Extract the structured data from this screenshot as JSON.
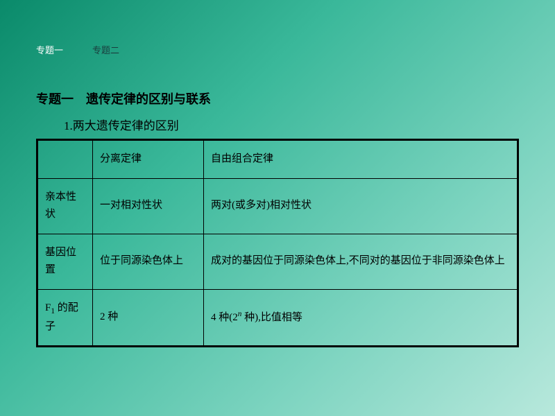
{
  "tabs": {
    "t1": "专题一",
    "t2": "专题二"
  },
  "heading": {
    "main": "专题一　遗传定律的区别与联系",
    "sub": "1.两大遗传定律的区别"
  },
  "table": {
    "columns": [
      "",
      "分离定律",
      "自由组合定律"
    ],
    "rows": [
      {
        "label": "亲本性状",
        "c1": "一对相对性状",
        "c2": "两对(或多对)相对性状"
      },
      {
        "label": "基因位置",
        "c1": "位于同源染色体上",
        "c2": "成对的基因位于同源染色体上,不同对的基因位于非同源染色体上"
      },
      {
        "label_html": "F<sub>1</sub> 的配子",
        "c1": "2 种",
        "c2_html": "4 种(2<sup>n</sup> 种),比值相等"
      }
    ],
    "border_color": "#000000",
    "text_color": "#000000",
    "font_size_pt": 11
  },
  "style": {
    "bg_gradient_stops": [
      "#0a8a6a",
      "#3ab89a",
      "#7dd4c0",
      "#b8e8dc"
    ],
    "tab_active_color": "#ffffff",
    "tab_inactive_color": "#1a3d3d"
  }
}
